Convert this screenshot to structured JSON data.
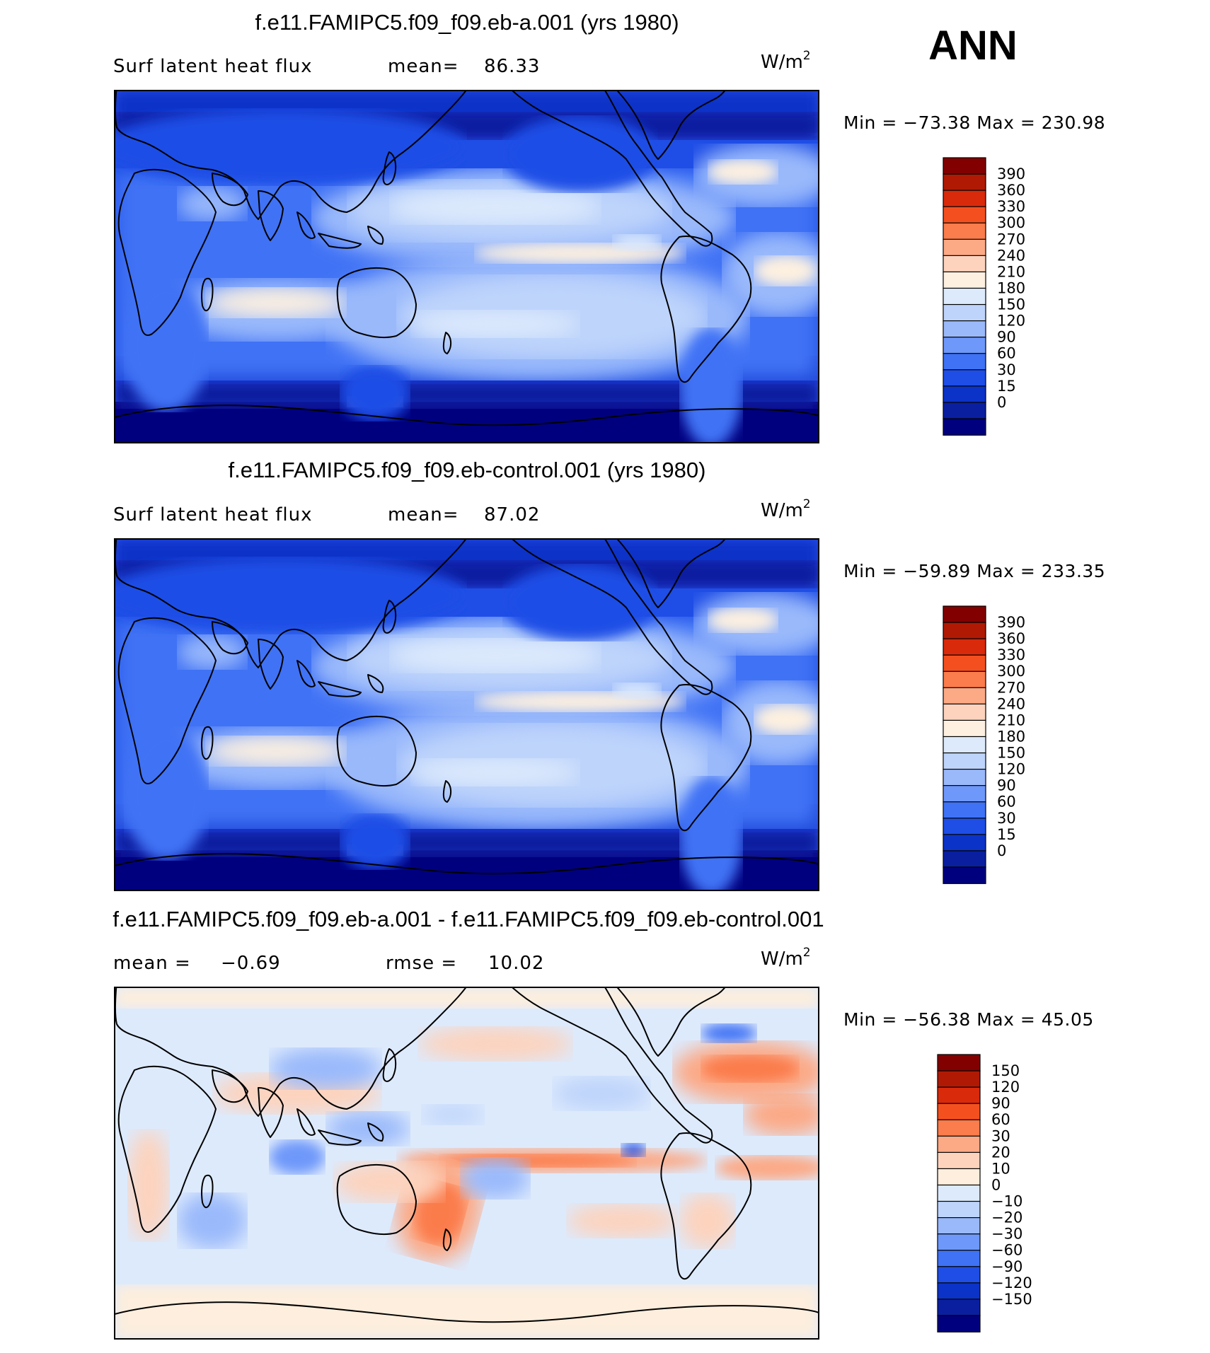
{
  "season": "ANN",
  "units_text": "W/m",
  "units_sup": "2",
  "colors": {
    "abs": [
      "#00007f",
      "#0a1fa0",
      "#0c33c8",
      "#1f4ee6",
      "#3f72f5",
      "#6e98fa",
      "#9ab9fb",
      "#bed4fb",
      "#ddeafc",
      "#fdf0e0",
      "#fdd3bd",
      "#fca985",
      "#fb7c4c",
      "#f4501f",
      "#d92a0c",
      "#b01a04",
      "#820000"
    ],
    "diff": [
      "#00007f",
      "#0a1fa0",
      "#0c33c8",
      "#1f4ee6",
      "#3f72f5",
      "#6e98fa",
      "#9ab9fb",
      "#bed4fb",
      "#ddeafc",
      "#fdeedd",
      "#fdd3bd",
      "#fca985",
      "#fb7c4c",
      "#f4501f",
      "#d92a0c",
      "#b01a04",
      "#820000"
    ],
    "bg_abs": "#1f4ee6",
    "bg_diff": "#ddeafc"
  },
  "panels": [
    {
      "title": "f.e11.FAMIPC5.f09_f09.eb-a.001 (yrs 1980)",
      "left_text": "Surf latent heat flux",
      "mid_text": "mean=",
      "mid_value": "86.33",
      "min_label": "Min",
      "min_value": "−73.38",
      "max_label": "Max",
      "max_value": "230.98"
    },
    {
      "title": "f.e11.FAMIPC5.f09_f09.eb-control.001 (yrs 1980)",
      "left_text": "Surf latent heat flux",
      "mid_text": "mean=",
      "mid_value": "87.02",
      "min_label": "Min",
      "min_value": "−59.89",
      "max_label": "Max",
      "max_value": "233.35"
    },
    {
      "title": "f.e11.FAMIPC5.f09_f09.eb-a.001 - f.e11.FAMIPC5.f09_f09.eb-control.001",
      "left_text": "mean =",
      "left_value": "−0.69",
      "mid_text": "rmse =",
      "mid_value": "10.02",
      "min_label": "Min",
      "min_value": "−56.38",
      "max_label": "Max",
      "max_value": "45.05"
    }
  ],
  "chart_data": [
    {
      "type": "heatmap",
      "title": "f.e11.FAMIPC5.f09_f09.eb-a.001 (yrs 1980)",
      "variable": "Surf latent heat flux",
      "units": "W/m2",
      "mean": 86.33,
      "min": -73.38,
      "max": 230.98,
      "colorbar_levels": [
        390,
        360,
        330,
        300,
        270,
        240,
        210,
        180,
        150,
        120,
        90,
        60,
        30,
        15,
        0
      ],
      "colorbar_labels": [
        "390",
        "360",
        "330",
        "300",
        "270",
        "240",
        "210",
        "180",
        "150",
        "120",
        "90",
        "60",
        "30",
        "15",
        "0"
      ]
    },
    {
      "type": "heatmap",
      "title": "f.e11.FAMIPC5.f09_f09.eb-control.001 (yrs 1980)",
      "variable": "Surf latent heat flux",
      "units": "W/m2",
      "mean": 87.02,
      "min": -59.89,
      "max": 233.35,
      "colorbar_levels": [
        390,
        360,
        330,
        300,
        270,
        240,
        210,
        180,
        150,
        120,
        90,
        60,
        30,
        15,
        0
      ],
      "colorbar_labels": [
        "390",
        "360",
        "330",
        "300",
        "270",
        "240",
        "210",
        "180",
        "150",
        "120",
        "90",
        "60",
        "30",
        "15",
        "0"
      ]
    },
    {
      "type": "heatmap",
      "title": "f.e11.FAMIPC5.f09_f09.eb-a.001 - f.e11.FAMIPC5.f09_f09.eb-control.001",
      "units": "W/m2",
      "mean": -0.69,
      "rmse": 10.02,
      "min": -56.38,
      "max": 45.05,
      "colorbar_levels": [
        150,
        120,
        90,
        60,
        30,
        20,
        10,
        0,
        -10,
        -20,
        -30,
        -60,
        -90,
        -120,
        -150
      ],
      "colorbar_labels": [
        "150",
        "120",
        "90",
        "60",
        "30",
        "20",
        "10",
        "0",
        "−10",
        "−20",
        "−30",
        "−60",
        "−90",
        "−120",
        "−150"
      ]
    }
  ]
}
